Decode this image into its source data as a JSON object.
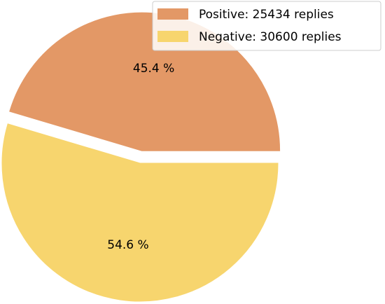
{
  "chart_data": {
    "type": "pie",
    "categories": [
      "Positive: 25434 replies",
      "Negative: 30600 replies"
    ],
    "values": [
      45.4,
      54.6
    ],
    "value_labels": [
      "45.4 %",
      "54.6 %"
    ],
    "colors": [
      "#e39866",
      "#f7d56e"
    ],
    "legend": "upper right"
  }
}
